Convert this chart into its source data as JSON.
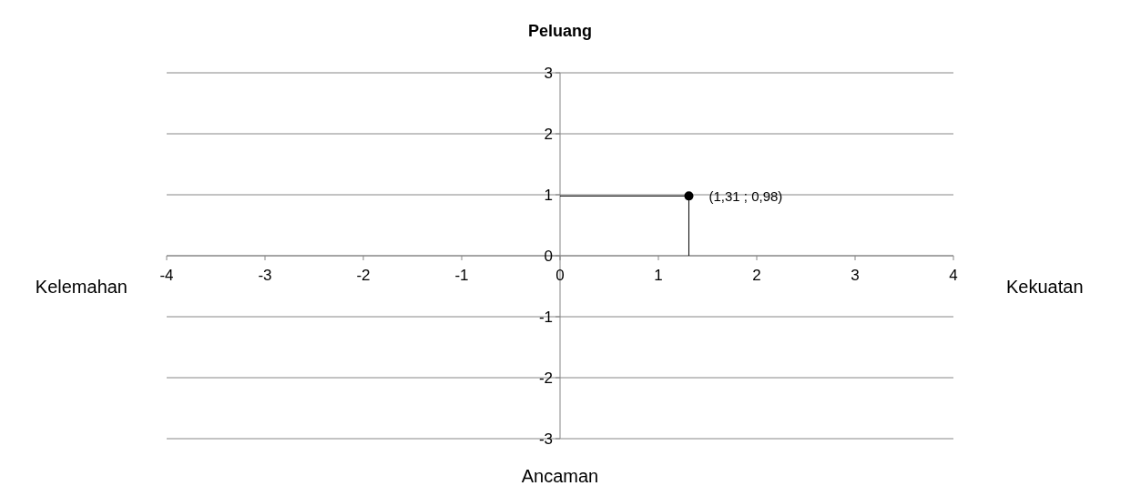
{
  "chart_data": {
    "type": "scatter",
    "x": [
      1.31
    ],
    "series": [
      {
        "color": "#000000",
        "values": [
          0.98
        ]
      }
    ],
    "value_labels": [
      "(1,31 ; 0,98)"
    ],
    "xlim": [
      -4,
      4
    ],
    "ylim": [
      -3,
      3
    ],
    "xticks": [
      -4,
      -3,
      -2,
      -1,
      0,
      1,
      2,
      3,
      4
    ],
    "yticks": [
      -3,
      -2,
      -1,
      0,
      1,
      2,
      3
    ],
    "grid": "y",
    "marker": "circle",
    "title": "Peluang",
    "xlabel": "Kekuatan",
    "annotations": [
      "Ancaman",
      "Kelemahan"
    ]
  }
}
